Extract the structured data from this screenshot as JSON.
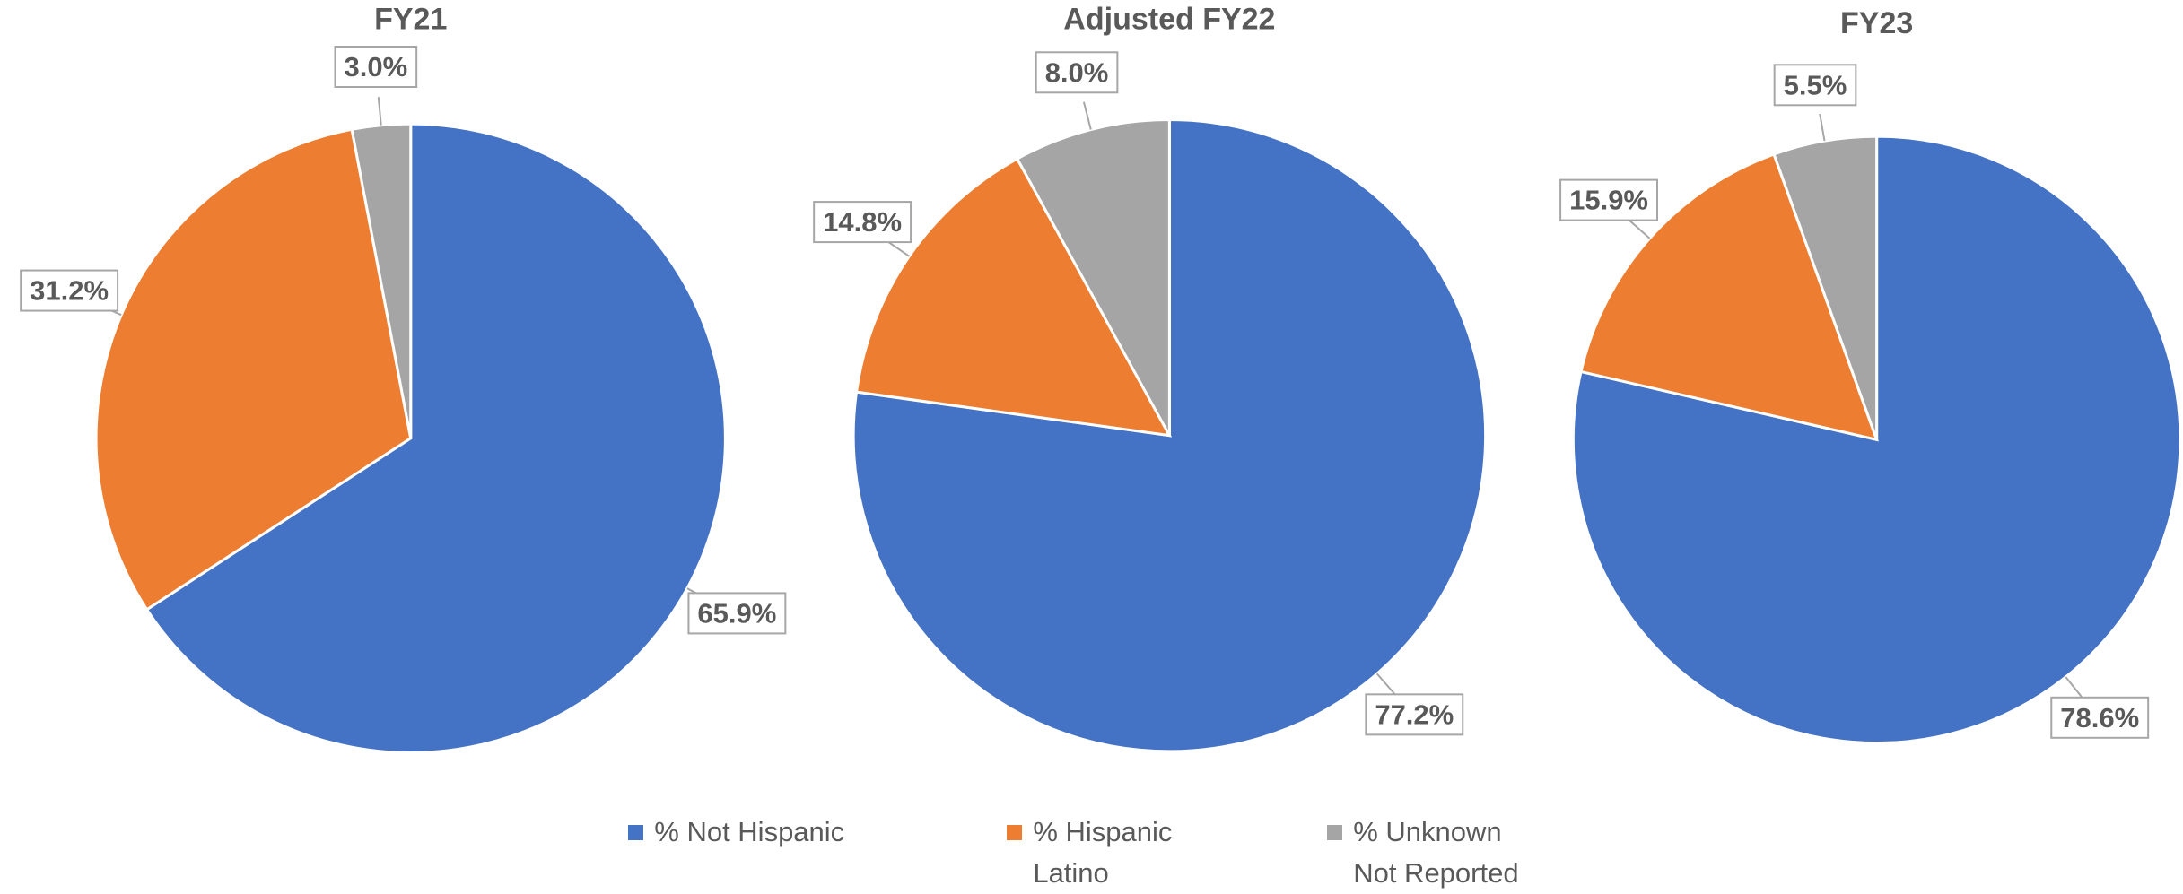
{
  "chart_data": [
    {
      "type": "pie",
      "title": "FY21",
      "categories": [
        "% Not Hispanic",
        "% Hispanic Latino",
        "% Unknown Not Reported"
      ],
      "values": [
        65.9,
        31.2,
        3.0
      ],
      "value_labels": [
        "65.9%",
        "31.2%",
        "3.0%"
      ],
      "colors": [
        "#4472c4",
        "#ed7d31",
        "#a5a5a5"
      ]
    },
    {
      "type": "pie",
      "title": "Adjusted FY22",
      "categories": [
        "% Not Hispanic",
        "% Hispanic Latino",
        "% Unknown Not Reported"
      ],
      "values": [
        77.2,
        14.8,
        8.0
      ],
      "value_labels": [
        "77.2%",
        "14.8%",
        "8.0%"
      ],
      "colors": [
        "#4472c4",
        "#ed7d31",
        "#a5a5a5"
      ]
    },
    {
      "type": "pie",
      "title": "FY23",
      "categories": [
        "% Not Hispanic",
        "% Hispanic Latino",
        "% Unknown Not Reported"
      ],
      "values": [
        78.6,
        15.9,
        5.5
      ],
      "value_labels": [
        "78.6%",
        "15.9%",
        "5.5%"
      ],
      "colors": [
        "#4472c4",
        "#ed7d31",
        "#a5a5a5"
      ]
    }
  ]
}
